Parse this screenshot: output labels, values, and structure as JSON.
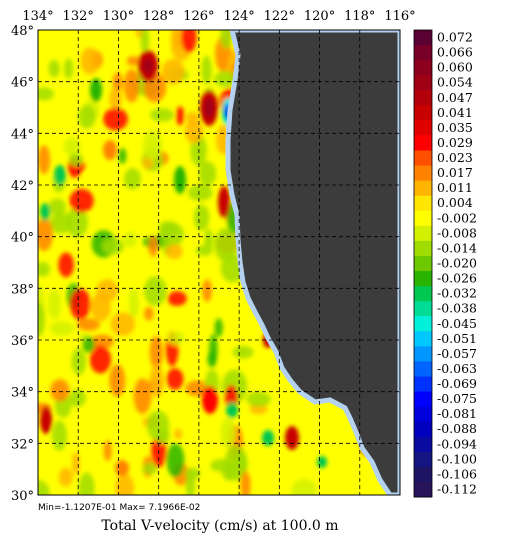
{
  "map": {
    "lon_labels": [
      "134°",
      "132°",
      "130°",
      "128°",
      "126°",
      "124°",
      "122°",
      "120°",
      "118°",
      "116°"
    ],
    "lat_labels": [
      "48°",
      "46°",
      "44°",
      "42°",
      "40°",
      "38°",
      "36°",
      "34°",
      "32°",
      "30°"
    ],
    "lon_range": [
      -134,
      -116
    ],
    "lat_range": [
      30,
      48
    ],
    "grid": "dashed",
    "land_color": "#3c3c3c",
    "coast_color": "#b4d2f0"
  },
  "minmax_text": "Min=-1.1207E-01  Max= 7.1966E-02",
  "title": "Total V-velocity (cm/s) at 100.0 m",
  "colorbar": {
    "entries": [
      {
        "label": "0.072",
        "color": "#5a0032"
      },
      {
        "label": "0.066",
        "color": "#780028"
      },
      {
        "label": "0.060",
        "color": "#8c001e"
      },
      {
        "label": "0.054",
        "color": "#a00014"
      },
      {
        "label": "0.047",
        "color": "#b4000a"
      },
      {
        "label": "0.041",
        "color": "#c80000"
      },
      {
        "label": "0.035",
        "color": "#e10000"
      },
      {
        "label": "0.029",
        "color": "#ff0000"
      },
      {
        "label": "0.023",
        "color": "#ff5000"
      },
      {
        "label": "0.017",
        "color": "#ff8200"
      },
      {
        "label": "0.011",
        "color": "#ffb400"
      },
      {
        "label": "0.004",
        "color": "#ffe600"
      },
      {
        "label": "-0.002",
        "color": "#ffff00"
      },
      {
        "label": "-0.008",
        "color": "#d2f000"
      },
      {
        "label": "-0.014",
        "color": "#a0dc00"
      },
      {
        "label": "-0.020",
        "color": "#6ec800"
      },
      {
        "label": "-0.026",
        "color": "#28b400"
      },
      {
        "label": "-0.032",
        "color": "#00c850"
      },
      {
        "label": "-0.038",
        "color": "#00dc96"
      },
      {
        "label": "-0.045",
        "color": "#00f0dc"
      },
      {
        "label": "-0.051",
        "color": "#00c8ff"
      },
      {
        "label": "-0.057",
        "color": "#0096ff"
      },
      {
        "label": "-0.063",
        "color": "#0064ff"
      },
      {
        "label": "-0.069",
        "color": "#0032ff"
      },
      {
        "label": "-0.075",
        "color": "#0000ff"
      },
      {
        "label": "-0.081",
        "color": "#0000dc"
      },
      {
        "label": "-0.088",
        "color": "#0000be"
      },
      {
        "label": "-0.094",
        "color": "#0a0aa0"
      },
      {
        "label": "-0.100",
        "color": "#141482"
      },
      {
        "label": "-0.106",
        "color": "#1e1464"
      },
      {
        "label": "-0.112",
        "color": "#28145a"
      }
    ]
  }
}
